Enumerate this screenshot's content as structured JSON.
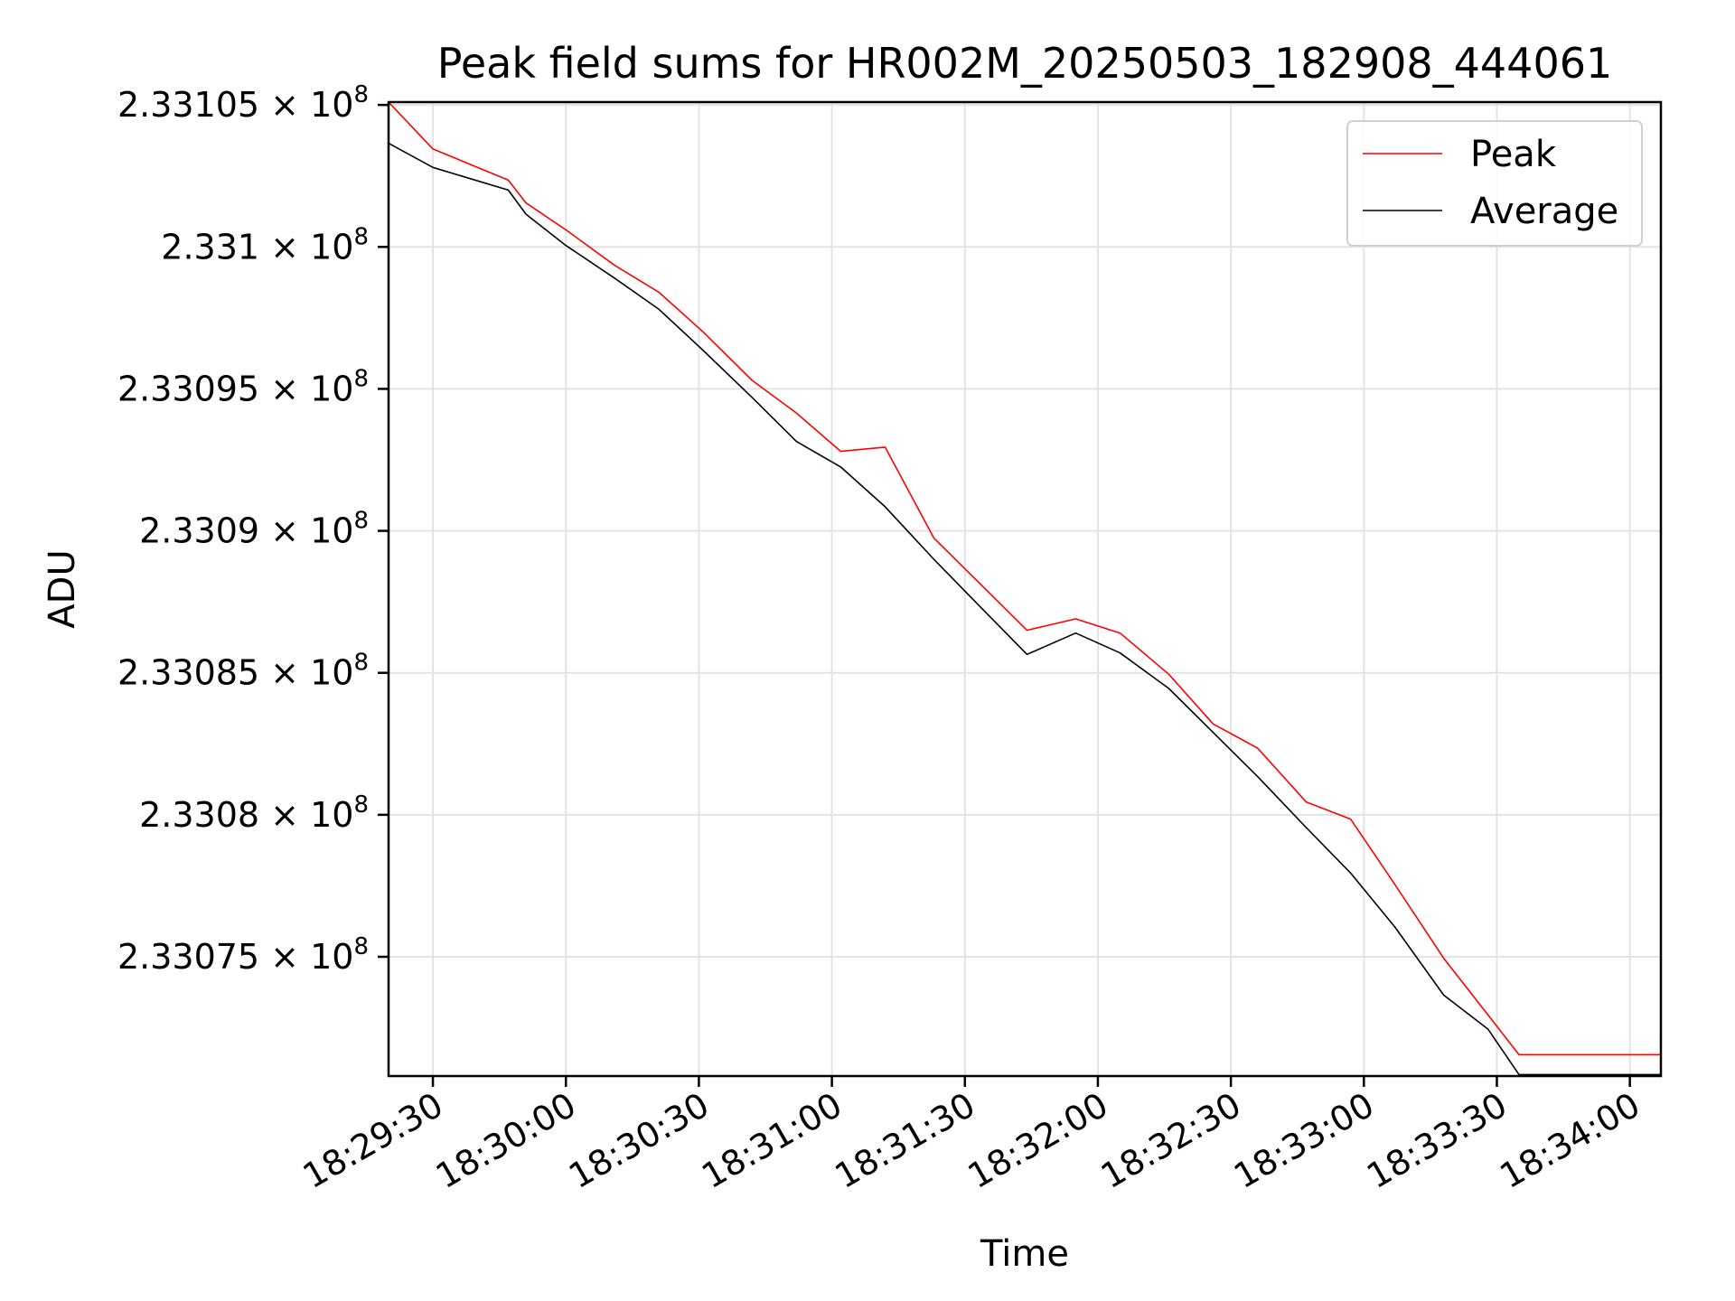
{
  "chart_data": {
    "type": "line",
    "title": "Peak field sums for HR002M_20250503_182908_444061",
    "xlabel": "Time",
    "ylabel": "ADU",
    "x_tick_labels": [
      "18:29:30",
      "18:30:00",
      "18:30:30",
      "18:31:00",
      "18:31:30",
      "18:32:00",
      "18:32:30",
      "18:33:00",
      "18:33:30",
      "18:34:00"
    ],
    "y_tick_labels": [
      {
        "value": 233075000,
        "mantissa": "2.33075",
        "exponent": "8"
      },
      {
        "value": 233080000,
        "mantissa": "2.3308",
        "exponent": "8"
      },
      {
        "value": 233085000,
        "mantissa": "2.33085",
        "exponent": "8"
      },
      {
        "value": 233090000,
        "mantissa": "2.3309",
        "exponent": "8"
      },
      {
        "value": 233095000,
        "mantissa": "2.33095",
        "exponent": "8"
      },
      {
        "value": 233100000,
        "mantissa": "2.331",
        "exponent": "8"
      },
      {
        "value": 233105000,
        "mantissa": "2.33105",
        "exponent": "8"
      }
    ],
    "times_mul_sign": "×",
    "grid": true,
    "legend_position": "top-right",
    "xlim": [
      "18:29:20",
      "18:34:07"
    ],
    "ylim": [
      233070800,
      233105100
    ],
    "x": [
      "18:29:20",
      "18:29:30",
      "18:29:47",
      "18:29:51",
      "18:30:00",
      "18:30:11",
      "18:30:21",
      "18:30:31",
      "18:30:42",
      "18:30:52",
      "18:31:02",
      "18:31:12",
      "18:31:23",
      "18:31:33",
      "18:31:44",
      "18:31:55",
      "18:32:05",
      "18:32:16",
      "18:32:26",
      "18:32:36",
      "18:32:47",
      "18:32:57",
      "18:33:07",
      "18:33:18",
      "18:33:28",
      "18:33:35",
      "18:33:50",
      "18:34:07"
    ],
    "series": [
      {
        "name": "Peak",
        "color": "#ff0000",
        "values": [
          233105100,
          233103450,
          233102350,
          233101550,
          233100600,
          233099350,
          233098400,
          233097000,
          233095300,
          233094150,
          233092800,
          233092950,
          233089750,
          233088200,
          233086500,
          233086900,
          233086400,
          233084950,
          233083200,
          233082350,
          233080450,
          233079850,
          233077550,
          233074950,
          233072950,
          233071550,
          233071550,
          233071550
        ]
      },
      {
        "name": "Average",
        "color": "#000000",
        "values": [
          233103650,
          233102800,
          233102000,
          233101150,
          233100050,
          233098900,
          233097800,
          233096350,
          233094700,
          233093150,
          233092250,
          233090850,
          233089000,
          233087400,
          233085650,
          233086400,
          233085700,
          233084450,
          233082900,
          233081350,
          233079550,
          233077950,
          233076050,
          233073650,
          233072450,
          233070850,
          233070850,
          233070850
        ]
      }
    ]
  }
}
